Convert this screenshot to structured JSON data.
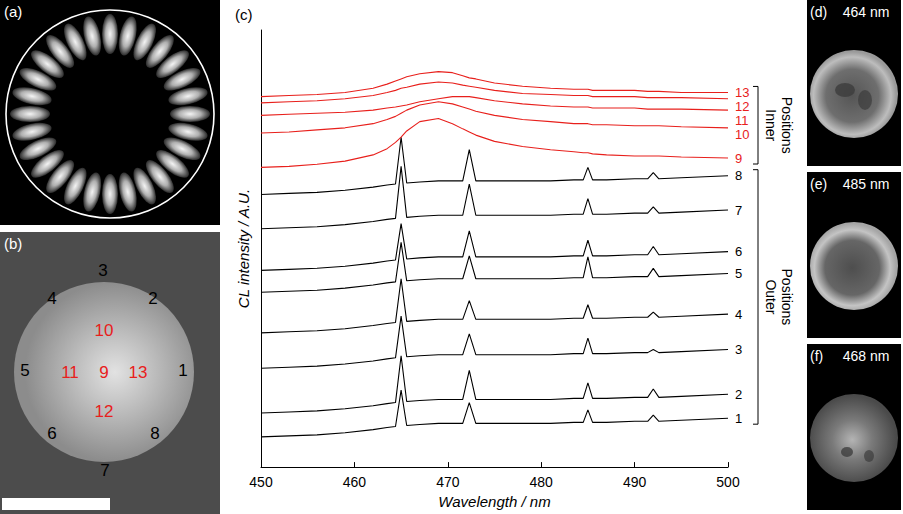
{
  "panels": {
    "a": {
      "label": "(a)"
    },
    "b": {
      "label": "(b)",
      "positions": [
        {
          "label": "1",
          "color": "#000000"
        },
        {
          "label": "2",
          "color": "#000000"
        },
        {
          "label": "3",
          "color": "#000000"
        },
        {
          "label": "4",
          "color": "#000000"
        },
        {
          "label": "5",
          "color": "#000000"
        },
        {
          "label": "6",
          "color": "#000000"
        },
        {
          "label": "7",
          "color": "#000000"
        },
        {
          "label": "8",
          "color": "#000000"
        },
        {
          "label": "9",
          "color": "#e8201c"
        },
        {
          "label": "10",
          "color": "#e8201c"
        },
        {
          "label": "11",
          "color": "#e8201c"
        },
        {
          "label": "12",
          "color": "#e8201c"
        },
        {
          "label": "13",
          "color": "#e8201c"
        }
      ]
    },
    "c": {
      "label": "(c)"
    },
    "maps": [
      {
        "label": "(d)",
        "wavelength": "464 nm"
      },
      {
        "label": "(e)",
        "wavelength": "485 nm"
      },
      {
        "label": "(f)",
        "wavelength": "468 nm"
      }
    ]
  },
  "chart_data": {
    "type": "line",
    "x_label": "Wavelength / nm",
    "y_label": "CL intensity / A.U.",
    "x": [
      450,
      453,
      456,
      459,
      462,
      463.5,
      464.4,
      465,
      465.6,
      467,
      469,
      470.5,
      471.6,
      472.3,
      473,
      475,
      478,
      481,
      483.5,
      484.5,
      485,
      485.5,
      487,
      490,
      491.4,
      492,
      492.6,
      495,
      500
    ],
    "xlim": [
      450,
      500
    ],
    "xticks": [
      450,
      460,
      470,
      480,
      490,
      500
    ],
    "ylim": [
      0,
      42
    ],
    "yticks": [],
    "tick_labels": "x",
    "grid": false,
    "series": [
      {
        "name": "1",
        "color": "#000000",
        "values": [
          2.9,
          3.0,
          3.1,
          3.3,
          3.6,
          3.8,
          3.9,
          7.4,
          4.0,
          4.1,
          4.2,
          4.2,
          4.2,
          6.2,
          4.2,
          4.2,
          4.2,
          4.2,
          4.3,
          4.3,
          5.5,
          4.3,
          4.3,
          4.4,
          4.4,
          5.0,
          4.4,
          4.5,
          4.7
        ]
      },
      {
        "name": "2",
        "color": "#000000",
        "values": [
          5.2,
          5.3,
          5.4,
          5.6,
          5.9,
          6.1,
          6.2,
          10.7,
          6.3,
          6.4,
          6.5,
          6.5,
          6.5,
          9.3,
          6.5,
          6.5,
          6.5,
          6.5,
          6.6,
          6.6,
          8.1,
          6.6,
          6.6,
          6.7,
          6.7,
          7.5,
          6.7,
          6.8,
          7.0
        ]
      },
      {
        "name": "3",
        "color": "#000000",
        "values": [
          9.5,
          9.6,
          9.7,
          9.9,
          10.2,
          10.4,
          10.5,
          14.5,
          10.6,
          10.7,
          10.8,
          10.8,
          10.8,
          12.8,
          10.8,
          10.8,
          10.8,
          10.8,
          10.9,
          10.9,
          12.4,
          10.9,
          10.9,
          11.0,
          11.0,
          11.3,
          11.0,
          11.1,
          11.3
        ]
      },
      {
        "name": "4",
        "color": "#000000",
        "values": [
          12.9,
          13.0,
          13.1,
          13.3,
          13.6,
          13.8,
          13.9,
          18.1,
          14.0,
          14.1,
          14.2,
          14.2,
          14.2,
          16.0,
          14.2,
          14.2,
          14.2,
          14.2,
          14.3,
          14.3,
          15.6,
          14.3,
          14.3,
          14.4,
          14.4,
          14.9,
          14.4,
          14.5,
          14.7
        ]
      },
      {
        "name": "5",
        "color": "#000000",
        "values": [
          16.8,
          16.9,
          17.0,
          17.2,
          17.5,
          17.7,
          17.8,
          21.6,
          17.9,
          18.0,
          18.1,
          18.1,
          18.1,
          20.3,
          18.1,
          18.1,
          18.1,
          18.1,
          18.2,
          18.2,
          20.2,
          18.2,
          18.2,
          18.3,
          18.3,
          19.1,
          18.3,
          18.4,
          18.6
        ]
      },
      {
        "name": "6",
        "color": "#000000",
        "values": [
          18.9,
          19.0,
          19.1,
          19.3,
          19.6,
          19.8,
          19.9,
          23.4,
          20.0,
          20.1,
          20.2,
          20.2,
          20.2,
          22.7,
          20.2,
          20.2,
          20.2,
          20.2,
          20.3,
          20.3,
          21.8,
          20.3,
          20.3,
          20.4,
          20.4,
          21.2,
          20.4,
          20.5,
          20.7
        ]
      },
      {
        "name": "7",
        "color": "#000000",
        "values": [
          22.9,
          23.0,
          23.1,
          23.3,
          23.6,
          23.8,
          23.9,
          28.9,
          24.0,
          24.1,
          24.2,
          24.2,
          24.2,
          27.2,
          24.2,
          24.2,
          24.2,
          24.2,
          24.3,
          24.3,
          25.8,
          24.3,
          24.3,
          24.4,
          24.4,
          25.0,
          24.4,
          24.5,
          24.7
        ]
      },
      {
        "name": "8",
        "color": "#000000",
        "values": [
          26.2,
          26.3,
          26.4,
          26.6,
          26.9,
          27.1,
          27.2,
          31.7,
          27.3,
          27.4,
          27.5,
          27.5,
          27.5,
          30.5,
          27.5,
          27.5,
          27.5,
          27.5,
          27.6,
          27.6,
          28.8,
          27.6,
          27.6,
          27.7,
          27.7,
          28.3,
          27.7,
          27.8,
          28.0
        ]
      },
      {
        "name": "9",
        "color": "#e8201c",
        "values": [
          28.8,
          28.9,
          29.1,
          29.4,
          30.0,
          30.6,
          31.2,
          31.7,
          32.3,
          33.2,
          33.5,
          33.0,
          32.5,
          32.2,
          31.9,
          31.3,
          30.8,
          30.5,
          30.3,
          30.2,
          30.2,
          30.1,
          30.0,
          29.9,
          29.9,
          29.9,
          29.9,
          29.8,
          29.7
        ]
      },
      {
        "name": "10",
        "color": "#e8201c",
        "values": [
          32.1,
          32.2,
          32.4,
          32.6,
          33.0,
          33.4,
          33.7,
          34.0,
          34.3,
          34.8,
          35.1,
          34.9,
          34.6,
          34.4,
          34.2,
          33.8,
          33.4,
          33.2,
          33.0,
          33.0,
          33.0,
          32.9,
          32.9,
          32.8,
          32.8,
          32.8,
          32.8,
          32.7,
          32.6
        ]
      },
      {
        "name": "11",
        "color": "#e8201c",
        "values": [
          33.8,
          33.9,
          34.0,
          34.1,
          34.3,
          34.5,
          34.6,
          34.7,
          34.8,
          35.1,
          35.4,
          35.6,
          35.6,
          35.6,
          35.5,
          35.2,
          34.9,
          34.7,
          34.6,
          34.6,
          34.6,
          34.5,
          34.5,
          34.5,
          34.4,
          34.4,
          34.4,
          34.4,
          34.3
        ]
      },
      {
        "name": "12",
        "color": "#e8201c",
        "values": [
          35.0,
          35.1,
          35.2,
          35.4,
          35.7,
          36.0,
          36.2,
          36.4,
          36.5,
          36.8,
          37.0,
          36.9,
          36.7,
          36.6,
          36.5,
          36.2,
          35.9,
          35.8,
          35.7,
          35.7,
          35.7,
          35.6,
          35.6,
          35.6,
          35.5,
          35.5,
          35.5,
          35.5,
          35.4
        ]
      },
      {
        "name": "13",
        "color": "#e8201c",
        "values": [
          35.6,
          35.7,
          35.8,
          36.0,
          36.4,
          36.8,
          37.1,
          37.3,
          37.5,
          37.8,
          38.0,
          37.9,
          37.6,
          37.4,
          37.3,
          36.9,
          36.6,
          36.4,
          36.3,
          36.3,
          36.3,
          36.2,
          36.2,
          36.2,
          36.1,
          36.1,
          36.1,
          36.0,
          36.0
        ]
      }
    ],
    "annotations": [
      {
        "text": "Inner Positions",
        "series": [
          "9",
          "10",
          "11",
          "12",
          "13"
        ]
      },
      {
        "text": "Outer Positions",
        "series": [
          "1",
          "2",
          "3",
          "4",
          "5",
          "6",
          "7",
          "8"
        ]
      }
    ]
  }
}
